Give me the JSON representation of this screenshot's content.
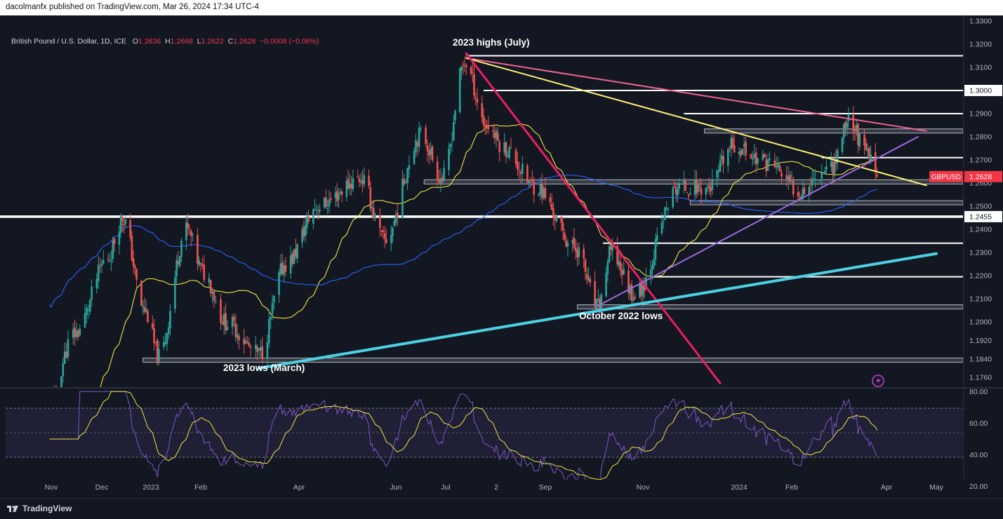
{
  "header": {
    "published": "dacolmanfx published on TradingView.com, Mar 26, 2024 17:34 UTC-4"
  },
  "legend": {
    "symbol": "British Pound / U.S. Dollar, 1D, ICE",
    "o_label": "O",
    "o_value": "1.2636",
    "h_label": "H",
    "h_value": "1.2668",
    "l_label": "L",
    "l_value": "1.2622",
    "c_label": "C",
    "c_value": "1.2628",
    "change": "−0.0008 (−0.06%)"
  },
  "footer": {
    "brand": "TradingView"
  },
  "colors": {
    "background": "#131722",
    "up": "#26a69a",
    "down": "#ef5350",
    "ma50": "#f0e442",
    "ma200": "#2962ff",
    "descending_trend_pink": "#f06292",
    "descending_trend_magenta": "#e91e63",
    "yellow_trend": "#fff176",
    "ascending_channel_purple": "#9c6ade",
    "ascending_trend_cyan": "#4dd0e1",
    "rsi_line": "#7e57c2",
    "rsi_signal": "#f0e442",
    "price_badge": "#f23645"
  },
  "chart_data": [
    {
      "type": "candlestick",
      "symbol": "GBPUSD",
      "current_price": "1.2628",
      "x_tick_labels": [
        "Nov",
        "Dec",
        "2023",
        "Feb",
        "Apr",
        "Jun",
        "Jul",
        "2",
        "Sep",
        "Nov",
        "2024",
        "Feb",
        "Apr",
        "May"
      ],
      "y_tick_labels": [
        "1.3300",
        "1.3200",
        "1.3100",
        "1.3000",
        "1.2900",
        "1.2800",
        "1.2700",
        "1.2600",
        "1.2500",
        "1.2400",
        "1.2300",
        "1.2200",
        "1.2100",
        "1.2000",
        "1.1920",
        "1.1840",
        "1.1760"
      ],
      "ylim": [
        1.17,
        1.33
      ],
      "price_badges": [
        {
          "label": "GBPUSD",
          "value": "1.2628"
        },
        {
          "value": "1.3000"
        },
        {
          "value": "1.2455"
        }
      ],
      "annotations": [
        "2023 highs (July)",
        "October 2022 lows",
        "2023 lows (March)"
      ],
      "horizontal_levels": [
        1.315,
        1.3,
        1.29,
        1.2825,
        1.271,
        1.2605,
        1.2515,
        1.2455,
        1.234,
        1.2195,
        1.2065,
        1.1835
      ],
      "moving_averages": [
        "50-day SMA (yellow)",
        "200-day SMA (blue)"
      ],
      "trendlines": [
        {
          "name": "pink descending resistance from 2023 highs",
          "from": [
            "2023-07-14",
            1.314
          ],
          "to": [
            "2024-04-25",
            1.2825
          ]
        },
        {
          "name": "yellow descending line from 2023 highs",
          "from": [
            "2023-07-14",
            1.314
          ],
          "to": [
            "2024-04-25",
            1.259
          ]
        },
        {
          "name": "magenta steep descending line",
          "from": [
            "2023-07-14",
            1.316
          ],
          "to": [
            "2023-12-20",
            1.1735
          ]
        },
        {
          "name": "purple ascending trendline from October 2023 lows",
          "from": [
            "2023-10-04",
            1.207
          ],
          "to": [
            "2024-04-20",
            1.28
          ]
        },
        {
          "name": "cyan ascending trendline from 2023 lows",
          "from": [
            "2023-03-08",
            1.18
          ],
          "to": [
            "2024-05-01",
            1.2295
          ]
        }
      ]
    },
    {
      "type": "line",
      "name": "RSI",
      "y_tick_labels": [
        "80.00",
        "60.00",
        "40.00",
        "20.00"
      ],
      "ylim": [
        15,
        85
      ],
      "bands": [
        30,
        50,
        70
      ]
    }
  ]
}
